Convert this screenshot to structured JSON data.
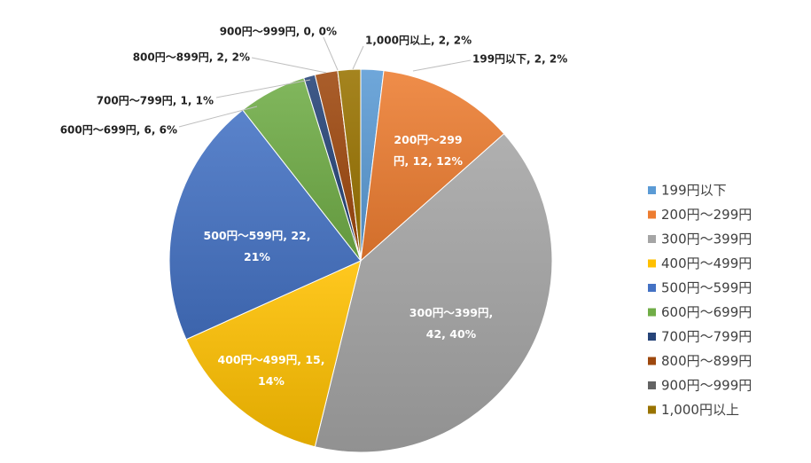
{
  "chart_data": {
    "type": "pie",
    "start_angle_deg": 0,
    "direction": "clockwise",
    "legend_position": "right",
    "slices": [
      {
        "category": "199円以下",
        "value": 2,
        "percent": "2%",
        "color": "#5B9BD5",
        "label": "199円以下, 2, 2%",
        "label_pos": "outside"
      },
      {
        "category": "200円～299円",
        "value": 12,
        "percent": "12%",
        "color": "#ED7D31",
        "label": "200円～299\n円, 12, 12%",
        "label_pos": "inside"
      },
      {
        "category": "300円～399円",
        "value": 42,
        "percent": "40%",
        "color": "#A5A5A5",
        "label": "300円～399円,\n42, 40%",
        "label_pos": "inside"
      },
      {
        "category": "400円～499円",
        "value": 15,
        "percent": "14%",
        "color": "#FFC000",
        "label": "400円～499円, 15,\n14%",
        "label_pos": "inside"
      },
      {
        "category": "500円～599円",
        "value": 22,
        "percent": "21%",
        "color": "#4472C4",
        "label": "500円～599円, 22,\n21%",
        "label_pos": "inside"
      },
      {
        "category": "600円～699円",
        "value": 6,
        "percent": "6%",
        "color": "#70AD47",
        "label": "600円～699円, 6, 6%",
        "label_pos": "outside"
      },
      {
        "category": "700円～799円",
        "value": 1,
        "percent": "1%",
        "color": "#264478",
        "label": "700円～799円, 1, 1%",
        "label_pos": "outside"
      },
      {
        "category": "800円～899円",
        "value": 2,
        "percent": "2%",
        "color": "#9E480E",
        "label": "800円～899円, 2, 2%",
        "label_pos": "outside"
      },
      {
        "category": "900円～999円",
        "value": 0,
        "percent": "0%",
        "color": "#636363",
        "label": "900円～999円, 0, 0%",
        "label_pos": "outside"
      },
      {
        "category": "1,000円以上",
        "value": 2,
        "percent": "2%",
        "color": "#997300",
        "label": "1,000円以上, 2, 2%",
        "label_pos": "outside"
      }
    ]
  }
}
